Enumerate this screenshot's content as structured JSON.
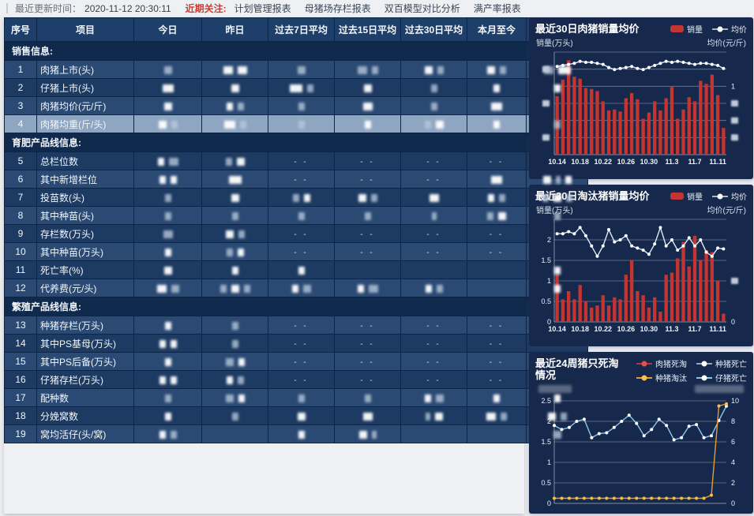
{
  "topbar": {
    "update_label": "最近更新时间：",
    "update_time": "2020-11-12 20:30:11",
    "focus_label": "近期关注:",
    "links": [
      "计划管理报表",
      "母猪场存栏报表",
      "双百模型对比分析",
      "满产率报表"
    ]
  },
  "table": {
    "headers": [
      "序号",
      "项目",
      "今日",
      "昨日",
      "过去7日平均",
      "过去15日平均",
      "过去30日平均",
      "本月至今",
      "本年累计"
    ],
    "highlight_row_no": "4",
    "redacted_note": "all value cells are blurred/redacted in source; b=blur block token, -- = no data",
    "groups": [
      {
        "title": "销售信息:",
        "rows": [
          {
            "no": "1",
            "label": "肉猪上市(头)",
            "shade": "light",
            "cells": [
              "g10",
              "w12 w12",
              "g10",
              "g12 g8",
              "w10 g8",
              "w10 g8",
              "g12 w16"
            ]
          },
          {
            "no": "2",
            "label": "仔猪上市(头)",
            "shade": "dark",
            "cells": [
              "w14",
              "w10",
              "w16 g8",
              "w10",
              "g8",
              "w8",
              "w8"
            ]
          },
          {
            "no": "3",
            "label": "肉猪均价(元/斤)",
            "shade": "light",
            "cells": [
              "w10",
              "w8 g8",
              "g8",
              "w12",
              "g8",
              "w14",
              ""
            ]
          },
          {
            "no": "4",
            "label": "肉猪均重(斤/头)",
            "shade": "light",
            "cells": [
              "w10 g8",
              "w14 g8",
              "g8",
              "w8",
              "g8 w10",
              "w8",
              "g8"
            ]
          }
        ]
      },
      {
        "title": "育肥产品线信息:",
        "rows": [
          {
            "no": "5",
            "label": "总栏位数",
            "shade": "dark",
            "cells": [
              "w8 g12",
              "g8 w10",
              "--",
              "--",
              "--",
              "--",
              "--"
            ]
          },
          {
            "no": "6",
            "label": "其中新增栏位",
            "shade": "light",
            "cells": [
              "w8 w8",
              "w16",
              "--",
              "--",
              "--",
              "w14",
              "w10 g6 w8"
            ]
          },
          {
            "no": "7",
            "label": "投苗数(头)",
            "shade": "dark",
            "cells": [
              "g8",
              "w10",
              "g8 w8",
              "w10 g8",
              "w12",
              "w8 g8",
              "g8 w10 g8"
            ]
          },
          {
            "no": "8",
            "label": "其中种苗(头)",
            "shade": "light",
            "cells": [
              "g8",
              "g8",
              "g8",
              "g8",
              "g6",
              "g8 w10",
              "g8"
            ]
          },
          {
            "no": "9",
            "label": "存栏数(万头)",
            "shade": "dark",
            "cells": [
              "g12",
              "w10 g8",
              "--",
              "--",
              "--",
              "--",
              "--"
            ]
          },
          {
            "no": "10",
            "label": "其中种苗(万头)",
            "shade": "light",
            "cells": [
              "w8",
              "g8 w8",
              "--",
              "--",
              "--",
              "--",
              "--"
            ]
          },
          {
            "no": "11",
            "label": "死亡率(%)",
            "shade": "dark",
            "cells": [
              "w10",
              "w8",
              "w8",
              "",
              "",
              "",
              "w8"
            ]
          },
          {
            "no": "12",
            "label": "代养费(元/头)",
            "shade": "light",
            "cells": [
              "w12 g10",
              "g8 w10 g8",
              "w8 g10",
              "w8 g12",
              "w8 g8",
              "",
              "w8"
            ]
          }
        ]
      },
      {
        "title": "繁殖产品线信息:",
        "rows": [
          {
            "no": "13",
            "label": "种猪存栏(万头)",
            "shade": "light",
            "cells": [
              "w8",
              "g8",
              "--",
              "--",
              "--",
              "--",
              "--"
            ]
          },
          {
            "no": "14",
            "label": "其中PS基母(万头)",
            "shade": "dark",
            "cells": [
              "w8 w8",
              "g8",
              "--",
              "--",
              "--",
              "--",
              "--"
            ]
          },
          {
            "no": "15",
            "label": "其中PS后备(万头)",
            "shade": "light",
            "cells": [
              "w8",
              "g10 w8",
              "--",
              "--",
              "--",
              "--",
              "--"
            ]
          },
          {
            "no": "16",
            "label": "仔猪存栏(万头)",
            "shade": "dark",
            "cells": [
              "w8 w8",
              "w8 g8",
              "--",
              "--",
              "--",
              "--",
              "--"
            ]
          },
          {
            "no": "17",
            "label": "配种数",
            "shade": "light",
            "cells": [
              "g8",
              "g10 w8",
              "g8",
              "g8",
              "w8 g10",
              "w8",
              "w8"
            ]
          },
          {
            "no": "18",
            "label": "分娩窝数",
            "shade": "dark",
            "cells": [
              "w8",
              "g8",
              "w10",
              "w12",
              "g6 w10",
              "w12 g8",
              "w10 g8"
            ]
          },
          {
            "no": "19",
            "label": "窝均活仔(头/窝)",
            "shade": "light",
            "cells": [
              "w8 g8",
              "",
              "w8",
              "w10 g6",
              "",
              "",
              "g10"
            ]
          }
        ]
      }
    ]
  },
  "chart_data": [
    {
      "type": "bar",
      "title": "最近30日肉猪销量均价",
      "y_left_name": "销量(万头)",
      "y_right_name": "均价(元/斤)",
      "legend": [
        {
          "label": "销量",
          "type": "bar",
          "color": "#c23531"
        },
        {
          "label": "均价",
          "type": "line",
          "line_color": "#aab6c6",
          "dot_color": "#ffffff"
        }
      ],
      "bar_color": "#c23531",
      "n_points": 30,
      "ylim": [
        0,
        100
      ],
      "ylim_note": "axis tick values redacted in source; bar/line values are relative 0-100",
      "grid": [
        0,
        16.7,
        33.3,
        50,
        66.7,
        83.3,
        100
      ],
      "bars": [
        57,
        73,
        92,
        76,
        74,
        65,
        64,
        62,
        52,
        43,
        44,
        42,
        55,
        60,
        54,
        35,
        41,
        52,
        43,
        55,
        66,
        35,
        44,
        56,
        52,
        72,
        69,
        78,
        58,
        26
      ],
      "series": [
        {
          "name": "均价",
          "scale": "left",
          "line_color": "#dce9f6",
          "dot_color": "#ffffff",
          "values": [
            86,
            87,
            88,
            89,
            91,
            90,
            90,
            89,
            88,
            85,
            83,
            84,
            85,
            86,
            84,
            83,
            85,
            87,
            89,
            91,
            90,
            91,
            90,
            89,
            88,
            89,
            89,
            88,
            87,
            84
          ]
        }
      ],
      "left_ticks": [
        {
          "v": 83.3,
          "t": "blur"
        },
        {
          "v": 50,
          "t": "blur"
        },
        {
          "v": 16.7,
          "t": "blur"
        }
      ],
      "right_ticks": [
        {
          "v": 66.7,
          "t": "1"
        },
        {
          "v": 50,
          "t": "blur"
        },
        {
          "v": 33.3,
          "t": "blur"
        },
        {
          "v": 16.7,
          "t": "blur"
        }
      ],
      "x_tick_labels": [
        "10.14",
        "10.18",
        "10.22",
        "10.26",
        "10.30",
        "11.3",
        "11.7",
        "11.11"
      ],
      "x_tick_positions": [
        0,
        4,
        8,
        12,
        16,
        20,
        24,
        28
      ]
    },
    {
      "type": "bar",
      "title": "最近30日淘汰猪销量均价",
      "y_left_name": "销量(万头)",
      "y_right_name": "均价(元/斤)",
      "legend": [
        {
          "label": "销量",
          "type": "bar",
          "color": "#c23531"
        },
        {
          "label": "均价",
          "type": "line",
          "line_color": "#aab6c6",
          "dot_color": "#ffffff"
        }
      ],
      "bar_color": "#c23531",
      "n_points": 30,
      "ylim": [
        0,
        2.5
      ],
      "grid": [
        0,
        0.5,
        1,
        1.5,
        2,
        2.5
      ],
      "bars": [
        1.15,
        0.55,
        0.75,
        0.55,
        0.9,
        0.5,
        0.35,
        0.4,
        0.65,
        0.4,
        0.6,
        0.55,
        1.15,
        1.5,
        0.75,
        0.65,
        0.35,
        0.6,
        0.25,
        1.15,
        1.2,
        1.55,
        1.95,
        1.35,
        2.1,
        1.5,
        1.75,
        1.7,
        1.0,
        0.2
      ],
      "series": [
        {
          "name": "均价",
          "scale": "left",
          "line_color": "#dce9f6",
          "dot_color": "#ffffff",
          "values": [
            2.15,
            2.15,
            2.2,
            2.15,
            2.3,
            2.1,
            1.85,
            1.6,
            1.85,
            2.25,
            1.95,
            2.0,
            2.1,
            1.85,
            1.8,
            1.75,
            1.65,
            1.9,
            2.3,
            1.85,
            2.0,
            1.75,
            1.85,
            2.05,
            1.85,
            2.0,
            1.7,
            1.6,
            1.8,
            1.78
          ]
        }
      ],
      "left_ticks": [
        {
          "v": 2,
          "t": "2"
        },
        {
          "v": 1.5,
          "t": "1.5"
        },
        {
          "v": 1,
          "t": "1"
        },
        {
          "v": 0.5,
          "t": "0.5"
        },
        {
          "v": 0,
          "t": "0"
        }
      ],
      "right_ticks": [
        {
          "v": 1,
          "t": "blur"
        },
        {
          "v": 0,
          "t": "0"
        }
      ],
      "x_tick_labels": [
        "10.14",
        "10.18",
        "10.22",
        "10.26",
        "10.30",
        "11.3",
        "11.7",
        "11.11"
      ],
      "x_tick_positions": [
        0,
        4,
        8,
        12,
        16,
        20,
        24,
        28
      ]
    },
    {
      "type": "line",
      "title": "最近24周猪只死淘情况",
      "y_left_name": "",
      "y_left_name_blur": 42,
      "y_right_name": "",
      "y_right_name_blur": 62,
      "legend": [
        {
          "label": "肉猪死淘",
          "type": "line",
          "line_color": "#b03a35",
          "dot_color": "#e0524a"
        },
        {
          "label": "种猪死亡",
          "type": "line",
          "line_color": "#9aa7b8",
          "dot_color": "#ffffff"
        },
        {
          "label": "种猪淘汰",
          "type": "line",
          "line_color": "#e79b2f",
          "dot_color": "#f5c04a"
        },
        {
          "label": "仔猪死亡",
          "type": "line",
          "line_color": "#8ec6e8",
          "dot_color": "#ffffff"
        }
      ],
      "n_points": 24,
      "ylim": [
        0,
        2.5
      ],
      "right_ratio": 0.25,
      "grid": [
        0,
        0.5,
        1,
        1.5,
        2,
        2.5
      ],
      "series": [
        {
          "name": "仔猪死亡",
          "scale": "left",
          "line_color": "#8ec6e8",
          "dot_color": "#ffffff",
          "values": [
            1.9,
            1.8,
            1.85,
            2.0,
            2.05,
            1.6,
            1.7,
            1.72,
            1.85,
            2.0,
            2.15,
            1.95,
            1.65,
            1.8,
            2.05,
            1.9,
            1.55,
            1.6,
            1.88,
            1.92,
            1.6,
            1.65,
            2.02,
            2.37
          ]
        },
        {
          "name": "种猪淘汰",
          "scale": "right",
          "line_color": "#e79b2f",
          "dot_color": "#f5c04a",
          "values": [
            0.5,
            0.5,
            0.5,
            0.5,
            0.5,
            0.5,
            0.5,
            0.5,
            0.5,
            0.5,
            0.5,
            0.5,
            0.5,
            0.5,
            0.5,
            0.5,
            0.5,
            0.5,
            0.5,
            0.5,
            0.5,
            0.8,
            9.5,
            9.7
          ]
        }
      ],
      "left_ticks": [
        {
          "v": 2.5,
          "t": "2.5"
        },
        {
          "v": 2,
          "t": "2"
        },
        {
          "v": 1.5,
          "t": "1.5"
        },
        {
          "v": 1,
          "t": "1"
        },
        {
          "v": 0.5,
          "t": "0.5"
        },
        {
          "v": 0,
          "t": "0"
        }
      ],
      "right_ticks": [
        {
          "v": 2.5,
          "t": "10"
        },
        {
          "v": 2,
          "t": "8"
        },
        {
          "v": 1.5,
          "t": "6"
        },
        {
          "v": 1,
          "t": "4"
        },
        {
          "v": 0.5,
          "t": "2"
        },
        {
          "v": 0,
          "t": "0"
        }
      ],
      "x_tick_labels": [],
      "x_tick_positions": []
    }
  ]
}
